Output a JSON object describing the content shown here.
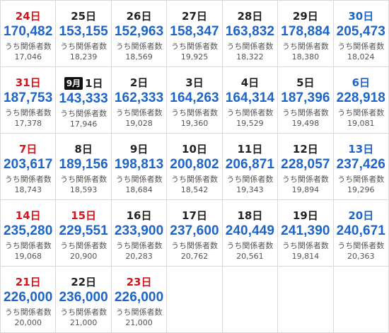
{
  "colors": {
    "red": "#d6141e",
    "blue": "#1d64c8",
    "black": "#222222",
    "grid": "#d9d9d9"
  },
  "cells": [
    {
      "day": "24日",
      "color": "red",
      "value": "170,482",
      "label": "うち関係者数",
      "sub": "17,046"
    },
    {
      "day": "25日",
      "color": "black",
      "value": "153,155",
      "label": "うち関係者数",
      "sub": "18,239"
    },
    {
      "day": "26日",
      "color": "black",
      "value": "152,963",
      "label": "うち関係者数",
      "sub": "18,569"
    },
    {
      "day": "27日",
      "color": "black",
      "value": "158,347",
      "label": "うち関係者数",
      "sub": "19,925"
    },
    {
      "day": "28日",
      "color": "black",
      "value": "163,832",
      "label": "うち関係者数",
      "sub": "18,322"
    },
    {
      "day": "29日",
      "color": "black",
      "value": "178,884",
      "label": "うち関係者数",
      "sub": "18,380"
    },
    {
      "day": "30日",
      "color": "blue",
      "value": "205,473",
      "label": "うち関係者数",
      "sub": "18,024"
    },
    {
      "day": "31日",
      "color": "red",
      "value": "187,753",
      "label": "うち関係者数",
      "sub": "17,378"
    },
    {
      "day": "1日",
      "month": "9月",
      "color": "black",
      "value": "143,333",
      "label": "うち関係者数",
      "sub": "17,946"
    },
    {
      "day": "2日",
      "color": "black",
      "value": "162,333",
      "label": "うち関係者数",
      "sub": "19,028"
    },
    {
      "day": "3日",
      "color": "black",
      "value": "164,263",
      "label": "うち関係者数",
      "sub": "19,360"
    },
    {
      "day": "4日",
      "color": "black",
      "value": "164,314",
      "label": "うち関係者数",
      "sub": "19,529"
    },
    {
      "day": "5日",
      "color": "black",
      "value": "187,396",
      "label": "うち関係者数",
      "sub": "19,498"
    },
    {
      "day": "6日",
      "color": "blue",
      "value": "228,918",
      "label": "うち関係者数",
      "sub": "19,081"
    },
    {
      "day": "7日",
      "color": "red",
      "value": "203,617",
      "label": "うち関係者数",
      "sub": "18,743"
    },
    {
      "day": "8日",
      "color": "black",
      "value": "189,156",
      "label": "うち関係者数",
      "sub": "18,593"
    },
    {
      "day": "9日",
      "color": "black",
      "value": "198,813",
      "label": "うち関係者数",
      "sub": "18,684"
    },
    {
      "day": "10日",
      "color": "black",
      "value": "200,802",
      "label": "うち関係者数",
      "sub": "18,542"
    },
    {
      "day": "11日",
      "color": "black",
      "value": "206,871",
      "label": "うち関係者数",
      "sub": "19,343"
    },
    {
      "day": "12日",
      "color": "black",
      "value": "228,057",
      "label": "うち関係者数",
      "sub": "19,894"
    },
    {
      "day": "13日",
      "color": "blue",
      "value": "237,426",
      "label": "うち関係者数",
      "sub": "19,296"
    },
    {
      "day": "14日",
      "color": "red",
      "value": "235,280",
      "label": "うち関係者数",
      "sub": "19,068"
    },
    {
      "day": "15日",
      "color": "red",
      "value": "229,551",
      "label": "うち関係者数",
      "sub": "20,900"
    },
    {
      "day": "16日",
      "color": "black",
      "value": "233,900",
      "label": "うち関係者数",
      "sub": "20,283"
    },
    {
      "day": "17日",
      "color": "black",
      "value": "237,600",
      "label": "うち関係者数",
      "sub": "20,762"
    },
    {
      "day": "18日",
      "color": "black",
      "value": "240,449",
      "label": "うち関係者数",
      "sub": "20,561"
    },
    {
      "day": "19日",
      "color": "black",
      "value": "241,390",
      "label": "うち関係者数",
      "sub": "19,814"
    },
    {
      "day": "20日",
      "color": "blue",
      "value": "240,671",
      "label": "うち関係者数",
      "sub": "20,363"
    },
    {
      "day": "21日",
      "color": "red",
      "value": "226,000",
      "label": "うち関係者数",
      "sub": "20,000"
    },
    {
      "day": "22日",
      "color": "black",
      "value": "236,000",
      "label": "うち関係者数",
      "sub": "21,000"
    },
    {
      "day": "23日",
      "color": "red",
      "value": "226,000",
      "label": "うち関係者数",
      "sub": "21,000"
    },
    {
      "empty": true
    },
    {
      "empty": true
    },
    {
      "empty": true
    },
    {
      "empty": true
    }
  ]
}
